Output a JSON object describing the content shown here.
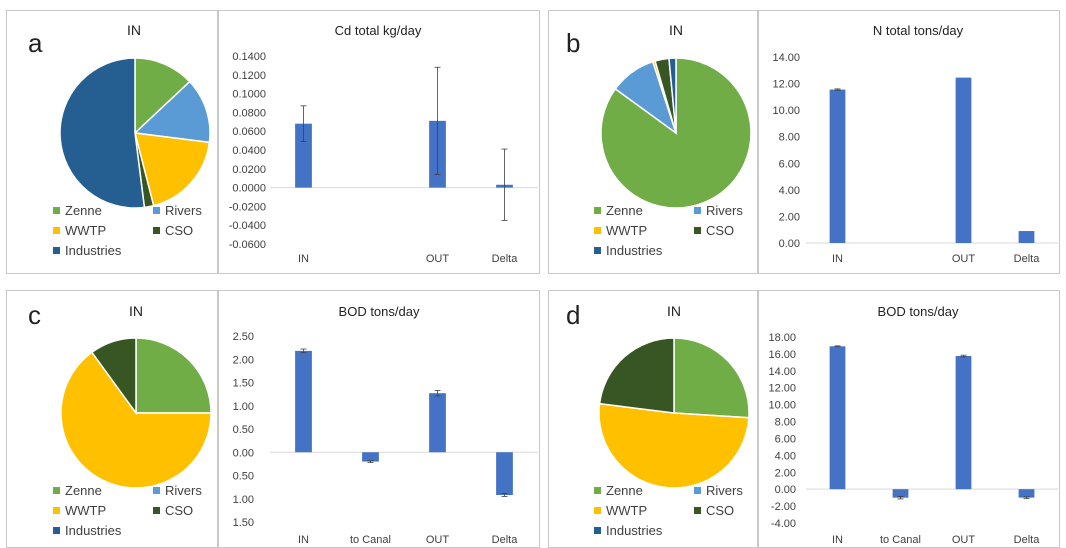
{
  "colors": {
    "Zenne": "#70ad47",
    "Rivers": "#5b9bd5",
    "WWTP": "#ffc000",
    "CSO": "#375623",
    "Industries": "#255e91",
    "bar": "#4472c4",
    "grid": "#d9d9d9",
    "axis_text": "#404040"
  },
  "panels": [
    {
      "letter": "a",
      "pie": {
        "title": "IN",
        "slices": [
          {
            "name": "Zenne",
            "value": 13
          },
          {
            "name": "Rivers",
            "value": 14
          },
          {
            "name": "WWTP",
            "value": 19
          },
          {
            "name": "CSO",
            "value": 2
          },
          {
            "name": "Industries",
            "value": 52
          }
        ],
        "legend": [
          "Zenne",
          "Rivers",
          "WWTP",
          "CSO",
          "Industries"
        ]
      },
      "bar": {
        "title": "Cd total kg/day",
        "categories": [
          "IN",
          "",
          "OUT",
          "Delta"
        ],
        "values": [
          0.068,
          null,
          0.071,
          0.003
        ],
        "errors": [
          0.019,
          null,
          0.057,
          0.038
        ],
        "ylim": [
          -0.06,
          0.14
        ],
        "step": 0.02,
        "decimals": 4
      }
    },
    {
      "letter": "b",
      "pie": {
        "title": "IN",
        "slices": [
          {
            "name": "Zenne",
            "value": 85
          },
          {
            "name": "Rivers",
            "value": 10
          },
          {
            "name": "WWTP",
            "value": 0.5
          },
          {
            "name": "CSO",
            "value": 3
          },
          {
            "name": "Industries",
            "value": 1.5
          }
        ],
        "legend": [
          "Zenne",
          "Rivers",
          "WWTP",
          "CSO",
          "Industries"
        ]
      },
      "bar": {
        "title": "N total tons/day",
        "categories": [
          "IN",
          "",
          "OUT",
          "Delta"
        ],
        "values": [
          11.55,
          null,
          12.45,
          0.9
        ],
        "errors": [
          0.05,
          null,
          0.0,
          0.0
        ],
        "ylim": [
          0,
          14
        ],
        "step": 2,
        "decimals": 2
      }
    },
    {
      "letter": "c",
      "pie": {
        "title": "IN",
        "slices": [
          {
            "name": "Zenne",
            "value": 25
          },
          {
            "name": "Rivers",
            "value": 0
          },
          {
            "name": "WWTP",
            "value": 65
          },
          {
            "name": "CSO",
            "value": 10
          },
          {
            "name": "Industries",
            "value": 0
          }
        ],
        "legend": [
          "Zenne",
          "Rivers",
          "WWTP",
          "CSO",
          "Industries"
        ]
      },
      "bar": {
        "title": "BOD tons/day",
        "categories": [
          "IN",
          "to Canal",
          "OUT",
          "Delta"
        ],
        "values": [
          2.18,
          -0.2,
          1.27,
          -0.92
        ],
        "errors": [
          0.04,
          0.02,
          0.06,
          0.03
        ],
        "ylim": [
          -1.5,
          2.5
        ],
        "step": 0.5,
        "decimals": 2,
        "abs_labels": true
      }
    },
    {
      "letter": "d",
      "pie": {
        "title": "IN",
        "slices": [
          {
            "name": "Zenne",
            "value": 26
          },
          {
            "name": "Rivers",
            "value": 0
          },
          {
            "name": "WWTP",
            "value": 51
          },
          {
            "name": "CSO",
            "value": 23
          },
          {
            "name": "Industries",
            "value": 0
          }
        ],
        "legend": [
          "Zenne",
          "Rivers",
          "WWTP",
          "CSO",
          "Industries"
        ]
      },
      "bar": {
        "title": "BOD tons/day",
        "categories": [
          "IN",
          "to Canal",
          "OUT",
          "Delta"
        ],
        "values": [
          16.9,
          -1.0,
          15.75,
          -1.0
        ],
        "errors": [
          0.05,
          0.15,
          0.1,
          0.1
        ],
        "ylim": [
          -4,
          18
        ],
        "step": 2,
        "decimals": 2
      }
    }
  ],
  "chart_data": [
    {
      "type": "pie",
      "title": "IN",
      "categories": [
        "Zenne",
        "Rivers",
        "WWTP",
        "CSO",
        "Industries"
      ],
      "values": [
        13,
        14,
        19,
        2,
        52
      ]
    },
    {
      "type": "bar",
      "title": "Cd total kg/day",
      "categories": [
        "IN",
        "",
        "OUT",
        "Delta"
      ],
      "values": [
        0.068,
        null,
        0.071,
        0.003
      ],
      "ylim": [
        -0.06,
        0.14
      ]
    },
    {
      "type": "pie",
      "title": "IN",
      "categories": [
        "Zenne",
        "Rivers",
        "WWTP",
        "CSO",
        "Industries"
      ],
      "values": [
        85,
        10,
        0.5,
        3,
        1.5
      ]
    },
    {
      "type": "bar",
      "title": "N total tons/day",
      "categories": [
        "IN",
        "",
        "OUT",
        "Delta"
      ],
      "values": [
        11.55,
        null,
        12.45,
        0.9
      ],
      "ylim": [
        0,
        14
      ]
    },
    {
      "type": "pie",
      "title": "IN",
      "categories": [
        "Zenne",
        "Rivers",
        "WWTP",
        "CSO",
        "Industries"
      ],
      "values": [
        25,
        0,
        65,
        10,
        0
      ]
    },
    {
      "type": "bar",
      "title": "BOD tons/day",
      "categories": [
        "IN",
        "to Canal",
        "OUT",
        "Delta"
      ],
      "values": [
        2.18,
        -0.2,
        1.27,
        -0.92
      ],
      "ylim": [
        -1.5,
        2.5
      ]
    },
    {
      "type": "pie",
      "title": "IN",
      "categories": [
        "Zenne",
        "Rivers",
        "WWTP",
        "CSO",
        "Industries"
      ],
      "values": [
        26,
        0,
        51,
        23,
        0
      ]
    },
    {
      "type": "bar",
      "title": "BOD tons/day",
      "categories": [
        "IN",
        "to Canal",
        "OUT",
        "Delta"
      ],
      "values": [
        16.9,
        -1.0,
        15.75,
        -1.0
      ],
      "ylim": [
        -4,
        18
      ]
    }
  ]
}
